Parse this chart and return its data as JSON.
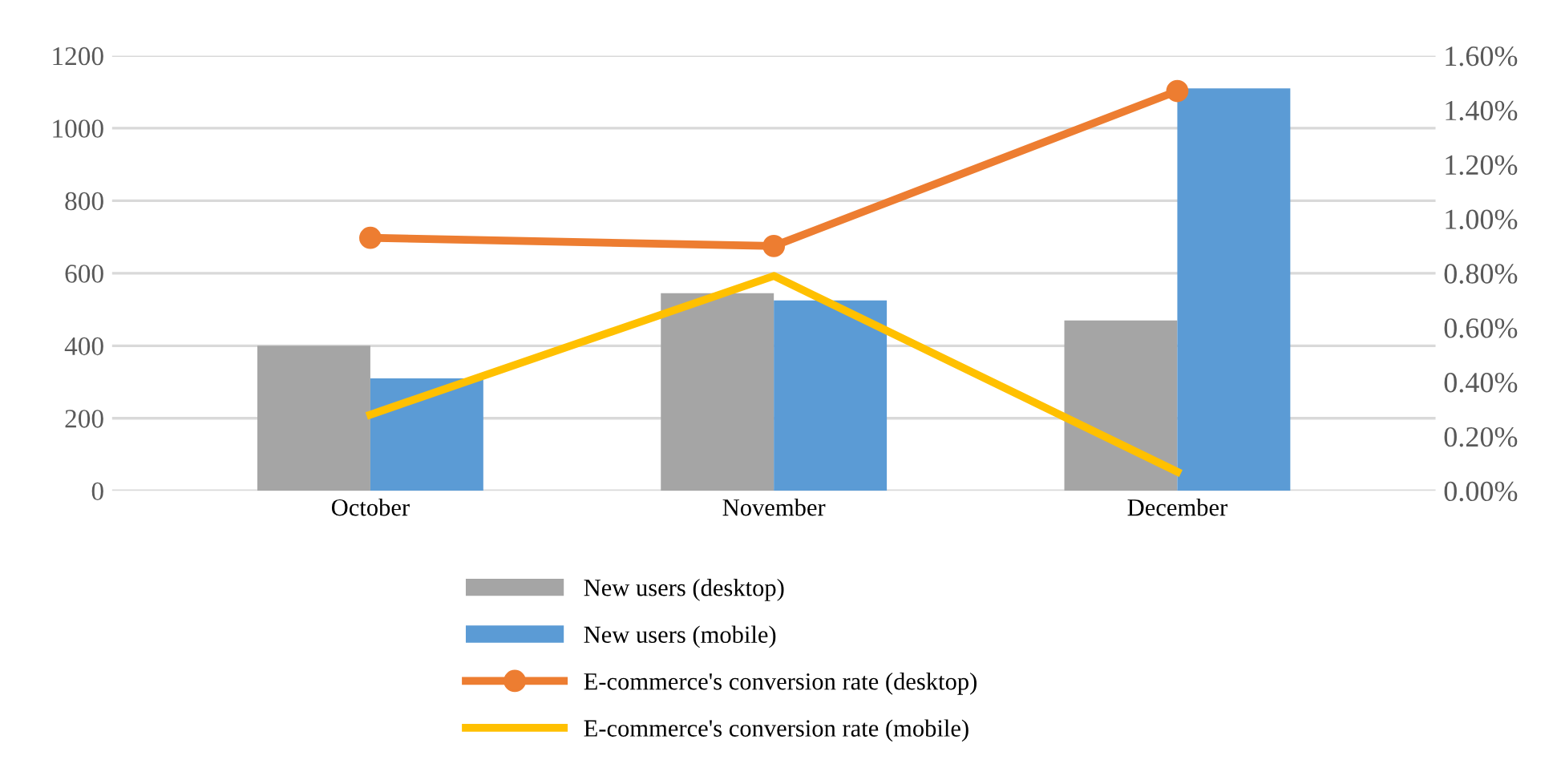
{
  "chart_data": {
    "type": "bar",
    "categories": [
      "October",
      "November",
      "December"
    ],
    "series": [
      {
        "name": "New users (desktop)",
        "color": "#a5a5a5",
        "values": [
          400,
          545,
          470
        ]
      },
      {
        "name": "New users (mobile)",
        "color": "#5b9bd5",
        "values": [
          310,
          525,
          1110
        ]
      },
      {
        "name": "E-commerce's conversion rate (desktop)",
        "type": "line",
        "axis": "y2",
        "color": "#ed7d31",
        "marker": "circle",
        "values": [
          0.93,
          0.9,
          1.47
        ]
      },
      {
        "name": "E-commerce's conversion rate (mobile)",
        "type": "line",
        "axis": "y2",
        "color": "#ffc000",
        "marker": "none",
        "values": [
          0.28,
          0.79,
          0.07
        ]
      }
    ],
    "ylim": [
      0,
      1200
    ],
    "yticks": [
      0,
      200,
      400,
      600,
      800,
      1000,
      1200
    ],
    "y2lim": [
      0,
      1.6
    ],
    "y2ticks": [
      {
        "value": 0,
        "label": "0.00%"
      },
      {
        "value": 0.2,
        "label": "0.20%"
      },
      {
        "value": 0.4,
        "label": "0.40%"
      },
      {
        "value": 0.6,
        "label": "0.60%"
      },
      {
        "value": 0.8,
        "label": "0.80%"
      },
      {
        "value": 1.0,
        "label": "1.00%"
      },
      {
        "value": 1.2,
        "label": "1.20%"
      },
      {
        "value": 1.4,
        "label": "1.40%"
      },
      {
        "value": 1.6,
        "label": "1.60%"
      }
    ],
    "grid": "y",
    "legend": "bottom",
    "line_style": "solid"
  }
}
